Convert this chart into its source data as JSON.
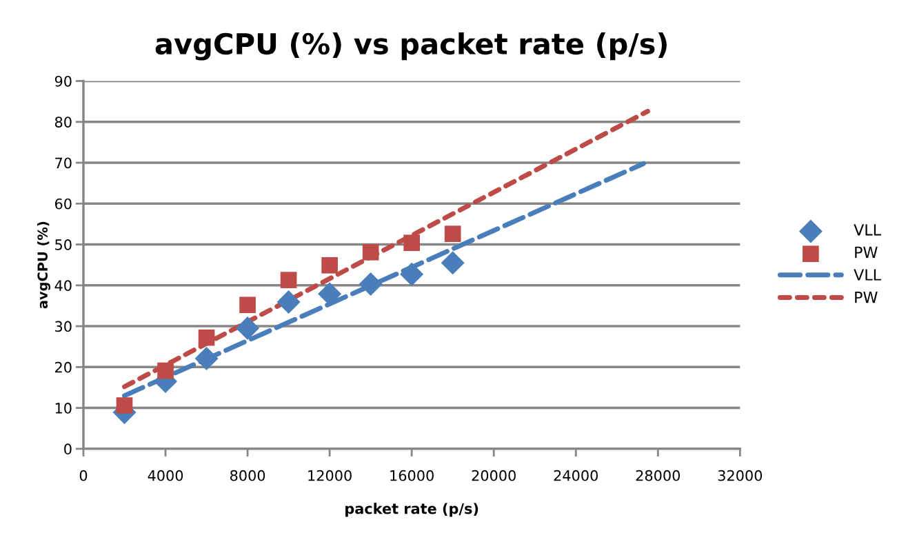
{
  "chart_data": {
    "type": "scatter",
    "title": "avgCPU (%) vs packet rate (p/s)",
    "xlabel": "packet rate (p/s)",
    "ylabel": "avgCPU (%)",
    "x": [
      2000,
      4000,
      6000,
      8000,
      10000,
      12000,
      14000,
      16000,
      18000
    ],
    "series": [
      {
        "name": "VLL",
        "color": "#4a7ebb",
        "marker": "diamond",
        "values": [
          8.9,
          16.5,
          22.1,
          29.5,
          35.9,
          37.9,
          40.3,
          42.7,
          45.5
        ]
      },
      {
        "name": "PW",
        "color": "#be4b48",
        "marker": "square",
        "values": [
          10.6,
          19.1,
          27.2,
          35.2,
          41.3,
          44.9,
          48.1,
          50.4,
          52.6
        ]
      },
      {
        "name": "VLL",
        "type": "line",
        "color": "#4a7ebb",
        "line_style": "dashed",
        "marker": "none",
        "x": [
          2000,
          27300
        ],
        "values": [
          13.0,
          69.8
        ]
      },
      {
        "name": "PW",
        "type": "line",
        "color": "#be4b48",
        "line_style": "dotted",
        "marker": "none",
        "x": [
          2000,
          27500
        ],
        "values": [
          15.2,
          82.6
        ]
      }
    ],
    "xlim": [
      0,
      32000
    ],
    "xticks": [
      0,
      4000,
      8000,
      12000,
      16000,
      20000,
      24000,
      28000,
      32000
    ],
    "ylim": [
      0,
      90
    ],
    "yticks": [
      0,
      10,
      20,
      30,
      40,
      50,
      60,
      70,
      80,
      90
    ],
    "grid": "y",
    "legend": "right"
  }
}
